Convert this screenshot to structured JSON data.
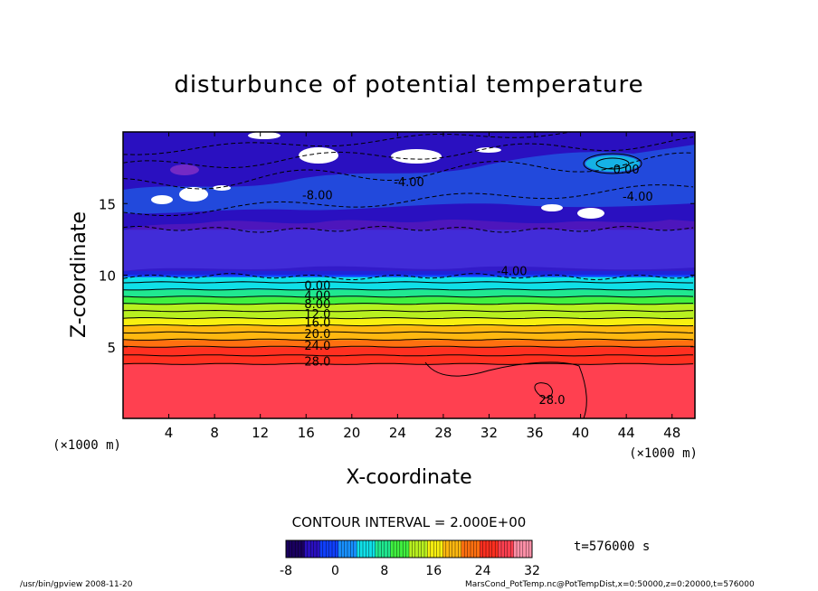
{
  "chart_data": {
    "type": "heatmap",
    "title": "disturbunce of potential temperature",
    "xlabel": "X-coordinate",
    "ylabel": "Z-coordinate",
    "x_unit": "(×1000 m)",
    "z_unit": "(×1000 m)",
    "xlim": [
      0,
      50
    ],
    "ylim": [
      0,
      20
    ],
    "x_ticks": [
      4,
      8,
      12,
      16,
      20,
      24,
      28,
      32,
      36,
      40,
      44,
      48
    ],
    "y_ticks": [
      5,
      10,
      15
    ],
    "contour_interval_label": "CONTOUR INTERVAL = 2.000E+00",
    "time_label": "t=576000 s",
    "colorbar": {
      "min": -8,
      "max": 32,
      "ticks": [
        -8,
        0,
        8,
        16,
        24,
        32
      ],
      "colors": [
        "#1a0060",
        "#2a10c0",
        "#1040ff",
        "#1890ff",
        "#10e0e8",
        "#20e890",
        "#40f040",
        "#b8f020",
        "#f8f010",
        "#ffb810",
        "#ff7010",
        "#ff3020",
        "#ff4050",
        "#ff90a8"
      ]
    },
    "layers": [
      {
        "z_min": 0,
        "z_max": 3.8,
        "value": 29
      },
      {
        "z_min": 3.8,
        "z_max": 4.4,
        "value": 26
      },
      {
        "z_min": 4.4,
        "z_max": 5.0,
        "value": 24
      },
      {
        "z_min": 5.0,
        "z_max": 5.5,
        "value": 22
      },
      {
        "z_min": 5.5,
        "z_max": 6.0,
        "value": 20
      },
      {
        "z_min": 6.0,
        "z_max": 6.5,
        "value": 18
      },
      {
        "z_min": 6.5,
        "z_max": 7.0,
        "value": 16
      },
      {
        "z_min": 7.0,
        "z_max": 7.5,
        "value": 14
      },
      {
        "z_min": 7.5,
        "z_max": 8.0,
        "value": 12
      },
      {
        "z_min": 8.0,
        "z_max": 8.5,
        "value": 10
      },
      {
        "z_min": 8.5,
        "z_max": 9.0,
        "value": 8
      },
      {
        "z_min": 9.0,
        "z_max": 9.5,
        "value": 6
      },
      {
        "z_min": 9.5,
        "z_max": 9.9,
        "value": 4
      },
      {
        "z_min": 9.9,
        "z_max": 13.2,
        "value": -2
      },
      {
        "z_min": 13.2,
        "z_max": 20,
        "value": -4
      }
    ],
    "contour_labels": [
      {
        "text": "-8.00",
        "x": 17,
        "z": 15.3
      },
      {
        "text": "-4.00",
        "x": 25,
        "z": 16.2
      },
      {
        "text": "0.00",
        "x": 44,
        "z": 17.1
      },
      {
        "text": "-4.00",
        "x": 45,
        "z": 15.2
      },
      {
        "text": "-4.00",
        "x": 34,
        "z": 10.0
      },
      {
        "text": "0.00",
        "x": 17,
        "z": 9.0
      },
      {
        "text": "4.00",
        "x": 17,
        "z": 8.3
      },
      {
        "text": "8.00",
        "x": 17,
        "z": 7.7
      },
      {
        "text": "12.0",
        "x": 17,
        "z": 7.0
      },
      {
        "text": "16.0",
        "x": 17,
        "z": 6.4
      },
      {
        "text": "20.0",
        "x": 17,
        "z": 5.6
      },
      {
        "text": "24.0",
        "x": 17,
        "z": 4.8
      },
      {
        "text": "28.0",
        "x": 17,
        "z": 3.7
      },
      {
        "text": "28.0",
        "x": 37.5,
        "z": 1.0
      }
    ]
  },
  "footer": {
    "left": "/usr/bin/gpview  2008-11-20",
    "right": "MarsCond_PotTemp.nc@PotTempDist,x=0:50000,z=0:20000,t=576000"
  }
}
